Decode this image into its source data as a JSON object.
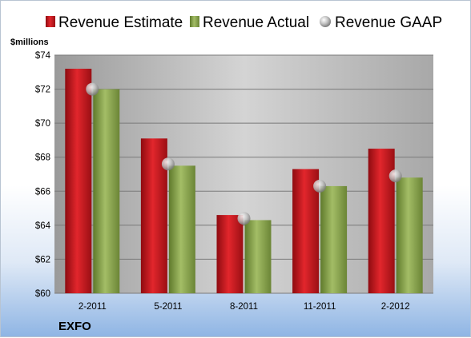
{
  "chart_data": {
    "type": "bar",
    "unit_label": "$millions",
    "company": "EXFO",
    "categories": [
      "2-2011",
      "5-2011",
      "8-2011",
      "11-2011",
      "2-2012"
    ],
    "series": [
      {
        "name": "Revenue Estimate",
        "kind": "bar",
        "color": "#c8161d",
        "values": [
          73.2,
          69.1,
          64.6,
          67.3,
          68.5
        ]
      },
      {
        "name": "Revenue Actual",
        "kind": "bar",
        "color": "#8fa854",
        "values": [
          72.0,
          67.5,
          64.3,
          66.3,
          66.8
        ]
      },
      {
        "name": "Revenue GAAP",
        "kind": "marker",
        "color": "#b8b8b8",
        "values": [
          72.0,
          67.6,
          64.4,
          66.3,
          66.9
        ]
      }
    ],
    "ylim": [
      60,
      74
    ],
    "yticks": [
      60,
      62,
      64,
      66,
      68,
      70,
      72,
      74
    ],
    "ytick_labels": [
      "$60",
      "$62",
      "$64",
      "$66",
      "$68",
      "$70",
      "$72",
      "$74"
    ],
    "grid": true,
    "legend_position": "top"
  }
}
